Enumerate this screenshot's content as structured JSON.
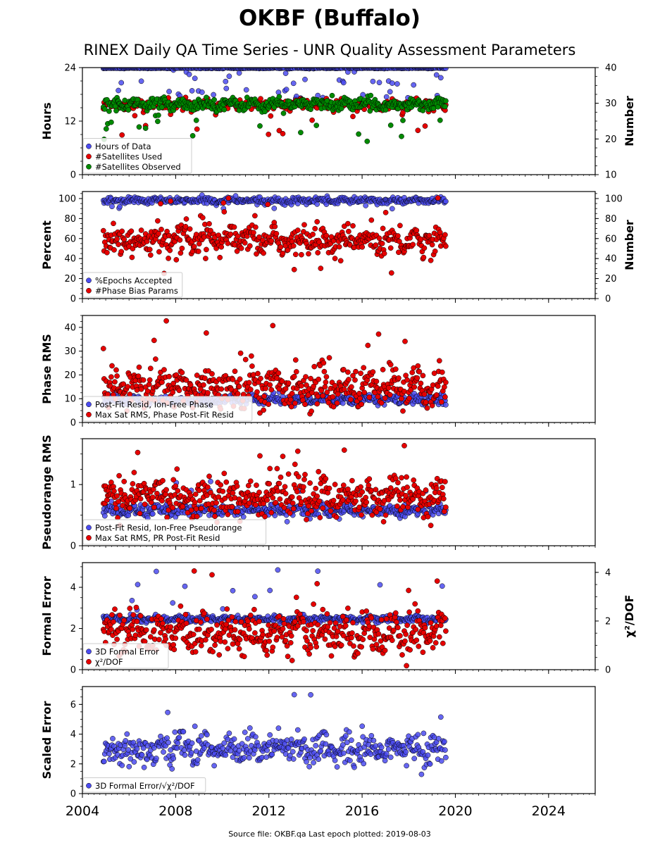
{
  "title": "OKBF (Buffalo)",
  "subtitle": "RINEX Daily QA Time Series - UNR Quality Assessment Parameters",
  "footer": "Source file: OKBF.qa Last epoch plotted: 2019-08-03",
  "colors": {
    "blue": "#4b4bf0",
    "red": "#e60000",
    "green": "#008a00"
  },
  "chart_data": [
    {
      "type": "scatter",
      "ylabel": "Hours",
      "ylim": [
        0,
        24
      ],
      "yticks": [
        0,
        12,
        24
      ],
      "ylabel_right": "Number",
      "ylim_right": [
        10,
        40
      ],
      "yticks_right": [
        10,
        20,
        30,
        40
      ],
      "xlim": [
        2004,
        2026
      ],
      "xticks": [
        2004,
        2008,
        2012,
        2016,
        2020,
        2024
      ],
      "legend_position": "bottom-left",
      "series": [
        {
          "name": "Hours of Data",
          "color": "blue",
          "axis": "left",
          "base": 23.9,
          "baseNoise": 0.05,
          "outProb": 0.08,
          "outLow": 17,
          "outHigh": 23.5
        },
        {
          "name": "#Satellites Used",
          "color": "red",
          "axis": "right",
          "base": 29.5,
          "baseNoise": 0.8,
          "outProb": 0.02,
          "outLow": 21,
          "outHigh": 27
        },
        {
          "name": "#Satellites Observed",
          "color": "green",
          "axis": "right",
          "base": 29.8,
          "baseNoise": 0.8,
          "outProb": 0.04,
          "outLow": 19,
          "outHigh": 28
        }
      ]
    },
    {
      "type": "scatter",
      "ylabel": "Percent",
      "ylim": [
        0,
        107
      ],
      "yticks": [
        0,
        20,
        40,
        60,
        80,
        100
      ],
      "ylabel_right": "Number",
      "ylim_right": [
        0,
        107
      ],
      "yticks_right": [
        0,
        20,
        40,
        60,
        80,
        100
      ],
      "xlim": [
        2004,
        2026
      ],
      "xticks": [
        2004,
        2008,
        2012,
        2016,
        2020,
        2024
      ],
      "legend_position": "bottom-left",
      "series": [
        {
          "name": "%Epochs Accepted",
          "color": "blue",
          "axis": "left",
          "base": 98,
          "baseNoise": 1.5,
          "outProb": 0.02,
          "outLow": 88,
          "outHigh": 96
        },
        {
          "name": "#Phase Bias Params",
          "color": "red",
          "axis": "right",
          "base": 58,
          "baseNoise": 7,
          "outProb": 0.03,
          "outLow": 20,
          "outHigh": 103
        }
      ]
    },
    {
      "type": "scatter",
      "ylabel": "Phase RMS",
      "ylim": [
        0,
        45
      ],
      "yticks": [
        0,
        10,
        20,
        30,
        40
      ],
      "xlim": [
        2004,
        2026
      ],
      "xticks": [
        2004,
        2008,
        2012,
        2016,
        2020,
        2024
      ],
      "legend_position": "bottom-left",
      "series": [
        {
          "name": "Post-Fit Resid, Ion-Free Phase",
          "color": "blue",
          "axis": "left",
          "base": 9.5,
          "baseNoise": 1.0,
          "outProb": 0.0,
          "outLow": 0,
          "outHigh": 0
        },
        {
          "name": "Max Sat RMS, Phase Post-Fit Resid",
          "color": "red",
          "axis": "left",
          "base": 15,
          "baseNoise": 4,
          "outProb": 0.015,
          "outLow": 26,
          "outHigh": 43
        }
      ]
    },
    {
      "type": "scatter",
      "ylabel": "Pseudorange RMS",
      "ylim": [
        0,
        1.75
      ],
      "yticks": [
        0,
        1
      ],
      "xlim": [
        2004,
        2026
      ],
      "xticks": [
        2004,
        2008,
        2012,
        2016,
        2020,
        2024
      ],
      "legend_position": "bottom-left",
      "series": [
        {
          "name": "Post-Fit Resid, Ion-Free Pseudorange",
          "color": "blue",
          "axis": "left",
          "base": 0.58,
          "baseNoise": 0.05,
          "outProb": 0.01,
          "outLow": 0.8,
          "outHigh": 1.1
        },
        {
          "name": "Max Sat RMS, PR Post-Fit Resid",
          "color": "red",
          "axis": "left",
          "base": 0.8,
          "baseNoise": 0.15,
          "outProb": 0.01,
          "outLow": 1.1,
          "outHigh": 1.7
        }
      ]
    },
    {
      "type": "scatter",
      "ylabel": "Formal Error",
      "ylim": [
        0,
        5.2
      ],
      "yticks": [
        0,
        2,
        4
      ],
      "ylabel_right": "χ²/DOF",
      "ylim_right": [
        0,
        4.4
      ],
      "yticks_right": [
        0,
        2,
        4
      ],
      "xlim": [
        2004,
        2026
      ],
      "xticks": [
        2004,
        2008,
        2012,
        2016,
        2020,
        2024
      ],
      "legend_position": "bottom-left",
      "series": [
        {
          "name": "3D Formal Error",
          "color": "blue",
          "axis": "left",
          "base": 2.45,
          "baseNoise": 0.08,
          "outProb": 0.03,
          "outLow": 2.8,
          "outHigh": 5.0
        },
        {
          "name": "χ²/DOF",
          "color": "red",
          "axis": "right",
          "base": 1.5,
          "baseNoise": 0.4,
          "outProb": 0.02,
          "outLow": 0.6,
          "outHigh": 4.1
        }
      ]
    },
    {
      "type": "scatter",
      "ylabel": "Scaled Error",
      "ylim": [
        0,
        7.2
      ],
      "yticks": [
        0,
        2,
        4,
        6
      ],
      "xlim": [
        2004,
        2026
      ],
      "xticks": [
        2004,
        2008,
        2012,
        2016,
        2020,
        2024
      ],
      "legend_position": "bottom-left",
      "series": [
        {
          "name": "3D Formal Error/√χ²/DOF",
          "color": "blue",
          "axis": "left",
          "base": 3.0,
          "baseNoise": 0.5,
          "outProb": 0.01,
          "outLow": 4.5,
          "outHigh": 6.8
        }
      ]
    }
  ],
  "data_range": {
    "start": 2004.9,
    "end": 2019.59,
    "n_points": 480
  }
}
